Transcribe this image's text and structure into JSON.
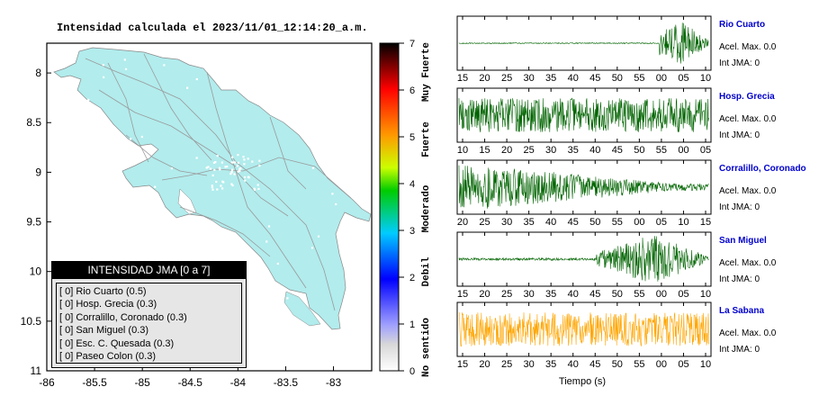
{
  "map": {
    "title": "Intensidad calculada el 2023/11/01_12:14:20_a.m.",
    "x_ticks": [
      "-86",
      "-85.5",
      "-85",
      "-84.5",
      "-84",
      "-83.5",
      "-83"
    ],
    "y_ticks": [
      "11",
      "10.5",
      "10",
      "9.5",
      "9",
      "8.5",
      "8"
    ],
    "land_color": "#b2eced",
    "legend": {
      "title": "INTENSIDAD JMA [0 a 7]",
      "items": [
        "[ 0] Rio Cuarto (0.5)",
        "[ 0] Hosp. Grecia (0.3)",
        "[ 0] Corralillo, Coronado (0.3)",
        "[ 0] San Miguel (0.3)",
        "[ 0] Esc. C. Quesada (0.3)",
        "[ 0] Paseo Colon (0.3)"
      ]
    }
  },
  "colorbar": {
    "ticks": [
      "0",
      "1",
      "2",
      "3",
      "4",
      "5",
      "6",
      "7"
    ],
    "labels": [
      "No sentido",
      "Debil",
      "Moderado",
      "Fuerte",
      "Muy Fuerte"
    ]
  },
  "waveforms": {
    "xlabel": "Tiempo (s)",
    "stations": [
      {
        "name": "Rio Cuarto",
        "acel": "Acel. Max. 0.0",
        "int": "Int JMA: 0",
        "ticks": [
          "15",
          "20",
          "25",
          "30",
          "35",
          "40",
          "45",
          "50",
          "55",
          "00",
          "05",
          "10"
        ],
        "color": "#006400",
        "envelope": "late"
      },
      {
        "name": "Hosp. Grecia",
        "acel": "Acel. Max. 0.0",
        "int": "Int JMA: 0",
        "ticks": [
          "10",
          "15",
          "20",
          "25",
          "30",
          "35",
          "40",
          "45",
          "50",
          "55",
          "00",
          "05"
        ],
        "color": "#006400",
        "envelope": "full"
      },
      {
        "name": "Corralillo, Coronado",
        "acel": "Acel. Max. 0.0",
        "int": "Int JMA: 0",
        "ticks": [
          "20",
          "25",
          "30",
          "35",
          "40",
          "45",
          "50",
          "55",
          "00",
          "05",
          "10",
          "15"
        ],
        "color": "#006400",
        "envelope": "decay"
      },
      {
        "name": "San Miguel",
        "acel": "Acel. Max. 0.0",
        "int": "Int JMA: 0",
        "ticks": [
          "15",
          "20",
          "25",
          "30",
          "35",
          "40",
          "45",
          "50",
          "55",
          "00",
          "05",
          "10"
        ],
        "color": "#006400",
        "envelope": "mid"
      },
      {
        "name": "La Sabana",
        "acel": "Acel. Max. 0.0",
        "int": "Int JMA: 0",
        "ticks": [
          "15",
          "20",
          "25",
          "30",
          "35",
          "40",
          "45",
          "50",
          "55",
          "00",
          "05",
          "10"
        ],
        "color": "#ffa500",
        "envelope": "full"
      }
    ]
  },
  "chart_data": [
    {
      "type": "scatter",
      "title": "Intensidad calculada el 2023/11/01_12:14:20_a.m.",
      "xlim": [
        -86,
        -82.6
      ],
      "ylim": [
        8,
        11.3
      ],
      "x_ticks": [
        -86,
        -85.5,
        -85,
        -84.5,
        -84,
        -83.5,
        -83
      ],
      "y_ticks": [
        8,
        8.5,
        9,
        9.5,
        10,
        10.5,
        11
      ],
      "colorbar_range": [
        0,
        7
      ],
      "legend": "bottom-left"
    },
    {
      "type": "line",
      "xlabel": "Tiempo (s)",
      "series": [
        {
          "name": "Rio Cuarto",
          "acel_max": 0.0,
          "int_jma": 0
        },
        {
          "name": "Hosp. Grecia",
          "acel_max": 0.0,
          "int_jma": 0
        },
        {
          "name": "Corralillo, Coronado",
          "acel_max": 0.0,
          "int_jma": 0
        },
        {
          "name": "San Miguel",
          "acel_max": 0.0,
          "int_jma": 0
        },
        {
          "name": "La Sabana",
          "acel_max": 0.0,
          "int_jma": 0
        }
      ]
    }
  ]
}
